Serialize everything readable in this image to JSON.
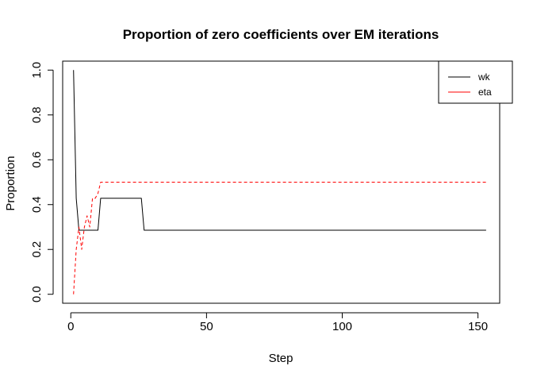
{
  "chart_data": {
    "type": "line",
    "title": "Proportion of zero coefficients over EM iterations",
    "xlabel": "Step",
    "ylabel": "Proportion",
    "xlim": [
      -3,
      158
    ],
    "ylim": [
      -0.04,
      1.04
    ],
    "xticks": [
      0,
      50,
      100,
      150
    ],
    "xtick_labels": [
      "0",
      "50",
      "100",
      "150"
    ],
    "yticks": [
      0.0,
      0.2,
      0.4,
      0.6,
      0.8,
      1.0
    ],
    "ytick_labels": [
      "0.0",
      "0.2",
      "0.4",
      "0.6",
      "0.8",
      "1.0"
    ],
    "grid": false,
    "legend_position": "top-right",
    "series": [
      {
        "name": "wk",
        "color": "#000000",
        "dash": "solid",
        "points": [
          [
            1,
            1.0
          ],
          [
            2,
            0.4286
          ],
          [
            3,
            0.2857
          ],
          [
            4,
            0.2857
          ],
          [
            5,
            0.2857
          ],
          [
            6,
            0.2857
          ],
          [
            7,
            0.2857
          ],
          [
            8,
            0.2857
          ],
          [
            9,
            0.2857
          ],
          [
            10,
            0.2857
          ],
          [
            11,
            0.4286
          ],
          [
            26,
            0.4286
          ],
          [
            27,
            0.2857
          ],
          [
            153,
            0.2857
          ]
        ]
      },
      {
        "name": "eta",
        "color": "#ff0000",
        "dash": "dashed",
        "points": [
          [
            1,
            0.0
          ],
          [
            2,
            0.2
          ],
          [
            3,
            0.3
          ],
          [
            4,
            0.2
          ],
          [
            5,
            0.3
          ],
          [
            6,
            0.35
          ],
          [
            7,
            0.3
          ],
          [
            8,
            0.4286
          ],
          [
            9,
            0.4286
          ],
          [
            10,
            0.45
          ],
          [
            11,
            0.5
          ],
          [
            153,
            0.5
          ]
        ]
      }
    ]
  }
}
